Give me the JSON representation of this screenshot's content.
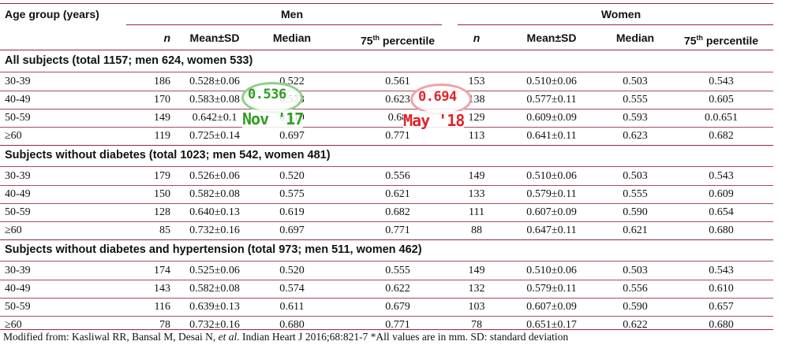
{
  "header": {
    "age_group": "Age group (years)",
    "men": "Men",
    "women": "Women",
    "n": "n",
    "mean_sd": "Mean±SD",
    "median": "Median",
    "p75_base": "75",
    "p75_sup": "th",
    "p75_rest": " percentile"
  },
  "sections": [
    {
      "title": "All subjects (total 1157; men 624, women 533)",
      "rows": [
        [
          "30-39",
          "186",
          "0.528±0.06",
          "0.522",
          "0.561",
          "153",
          "0.510±0.06",
          "0.503",
          "0.543"
        ],
        [
          "40-49",
          "170",
          "0.583±0.08",
          "0.573",
          "0.623",
          "138",
          "0.577±0.11",
          "0.555",
          "0.605"
        ],
        [
          "50-59",
          "149",
          "0.642±0.1",
          "0.619",
          "0.68",
          "129",
          "0.609±0.09",
          "0.593",
          "0.0.651"
        ],
        [
          "≥60",
          "119",
          "0.725±0.14",
          "0.697",
          "0.771",
          "113",
          "0.641±0.11",
          "0.623",
          "0.682"
        ]
      ]
    },
    {
      "title": "Subjects without diabetes (total 1023; men 542, women 481)",
      "rows": [
        [
          "30-39",
          "179",
          "0.526±0.06",
          "0.520",
          "0.556",
          "149",
          "0.510±0.06",
          "0.503",
          "0.543"
        ],
        [
          "40-49",
          "150",
          "0.582±0.08",
          "0.575",
          "0.621",
          "133",
          "0.579±0.11",
          "0.555",
          "0.609"
        ],
        [
          "50-59",
          "128",
          "0.640±0.13",
          "0.619",
          "0.682",
          "111",
          "0.607±0.09",
          "0.590",
          "0.654"
        ],
        [
          "≥60",
          "85",
          "0.732±0.16",
          "0.697",
          "0.771",
          "88",
          "0.647±0.11",
          "0.621",
          "0.680"
        ]
      ]
    },
    {
      "title": "Subjects without diabetes and hypertension (total 973; men 511, women 462)",
      "rows": [
        [
          "30-39",
          "174",
          "0.525±0.06",
          "0.520",
          "0.555",
          "149",
          "0.510±0.06",
          "0.503",
          "0.543"
        ],
        [
          "40-49",
          "143",
          "0.582±0.08",
          "0.574",
          "0.622",
          "132",
          "0.579±0.11",
          "0.556",
          "0.610"
        ],
        [
          "50-59",
          "116",
          "0.639±0.13",
          "0.611",
          "0.679",
          "103",
          "0.607±0.09",
          "0.590",
          "0.657"
        ],
        [
          "≥60",
          "78",
          "0.732±0.16",
          "0.680",
          "0.771",
          "78",
          "0.651±0.17",
          "0.622",
          "0.680"
        ]
      ]
    }
  ],
  "footer": {
    "text_a": "Modified from: Kasliwal RR, Bansal M, Desai N, ",
    "et_al": "et al",
    "text_b": ". Indian Heart J 2016;68:821-7 *All values are in mm. SD: standard deviation"
  },
  "annotations": {
    "green": {
      "value": "0.536",
      "label": "Nov '17",
      "color": "#2e9e1f",
      "oval_color": "#8fd08a"
    },
    "red": {
      "value": "0.694",
      "label": "May '18",
      "color": "#e0242a",
      "oval_color": "#f2a0a6"
    }
  },
  "colors": {
    "rule": "#8f2a3e"
  }
}
